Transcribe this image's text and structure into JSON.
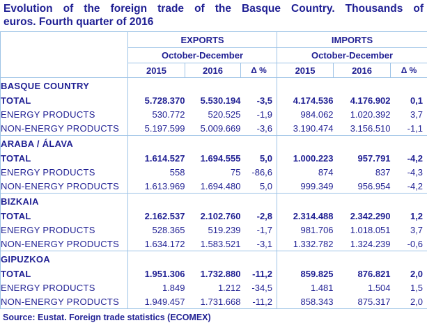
{
  "title": {
    "line1": "Evolution of the foreign trade of the Basque Country. Thousands of",
    "line2": "euros. Fourth quarter of 2016",
    "full": "Evolution of the foreign trade of the Basque Country. Thousands of euros. Fourth quarter of 2016"
  },
  "colors": {
    "text_navy": "#1f1f93",
    "border_blue": "#9dc3e6",
    "background": "#ffffff"
  },
  "table": {
    "groups": [
      {
        "label": "EXPORTS",
        "period": "October-December"
      },
      {
        "label": "IMPORTS",
        "period": "October-December"
      }
    ],
    "columns": [
      "2015",
      "2016",
      "Δ %"
    ],
    "sections": [
      {
        "name": "BASQUE COUNTRY",
        "rows": [
          {
            "label": "TOTAL",
            "bold": true,
            "exports": [
              "5.728.370",
              "5.530.194",
              "-3,5"
            ],
            "imports": [
              "4.174.536",
              "4.176.902",
              "0,1"
            ]
          },
          {
            "label": "ENERGY PRODUCTS",
            "bold": false,
            "exports": [
              "530.772",
              "520.525",
              "-1,9"
            ],
            "imports": [
              "984.062",
              "1.020.392",
              "3,7"
            ]
          },
          {
            "label": "NON-ENERGY PRODUCTS",
            "bold": false,
            "exports": [
              "5.197.599",
              "5.009.669",
              "-3,6"
            ],
            "imports": [
              "3.190.474",
              "3.156.510",
              "-1,1"
            ]
          }
        ]
      },
      {
        "name": "ARABA / ÁLAVA",
        "rows": [
          {
            "label": "TOTAL",
            "bold": true,
            "exports": [
              "1.614.527",
              "1.694.555",
              "5,0"
            ],
            "imports": [
              "1.000.223",
              "957.791",
              "-4,2"
            ]
          },
          {
            "label": "ENERGY PRODUCTS",
            "bold": false,
            "exports": [
              "558",
              "75",
              "-86,6"
            ],
            "imports": [
              "874",
              "837",
              "-4,3"
            ]
          },
          {
            "label": "NON-ENERGY PRODUCTS",
            "bold": false,
            "exports": [
              "1.613.969",
              "1.694.480",
              "5,0"
            ],
            "imports": [
              "999.349",
              "956.954",
              "-4,2"
            ]
          }
        ]
      },
      {
        "name": "BIZKAIA",
        "rows": [
          {
            "label": "TOTAL",
            "bold": true,
            "exports": [
              "2.162.537",
              "2.102.760",
              "-2,8"
            ],
            "imports": [
              "2.314.488",
              "2.342.290",
              "1,2"
            ]
          },
          {
            "label": "ENERGY PRODUCTS",
            "bold": false,
            "exports": [
              "528.365",
              "519.239",
              "-1,7"
            ],
            "imports": [
              "981.706",
              "1.018.051",
              "3,7"
            ]
          },
          {
            "label": "NON-ENERGY PRODUCTS",
            "bold": false,
            "exports": [
              "1.634.172",
              "1.583.521",
              "-3,1"
            ],
            "imports": [
              "1.332.782",
              "1.324.239",
              "-0,6"
            ]
          }
        ]
      },
      {
        "name": "GIPUZKOA",
        "rows": [
          {
            "label": "TOTAL",
            "bold": true,
            "exports": [
              "1.951.306",
              "1.732.880",
              "-11,2"
            ],
            "imports": [
              "859.825",
              "876.821",
              "2,0"
            ]
          },
          {
            "label": "ENERGY PRODUCTS",
            "bold": false,
            "exports": [
              "1.849",
              "1.212",
              "-34,5"
            ],
            "imports": [
              "1.481",
              "1.504",
              "1,5"
            ]
          },
          {
            "label": "NON-ENERGY PRODUCTS",
            "bold": false,
            "exports": [
              "1.949.457",
              "1.731.668",
              "-11,2"
            ],
            "imports": [
              "858.343",
              "875.317",
              "2,0"
            ]
          }
        ]
      }
    ]
  },
  "source": "Source: Eustat. Foreign trade statistics (ECOMEX)",
  "chart_data": {
    "type": "table",
    "title": "Evolution of the foreign trade of the Basque Country. Thousands of euros. Fourth quarter of 2016",
    "units": "Thousands of euros",
    "period": "October-December",
    "column_groups": [
      "EXPORTS",
      "IMPORTS"
    ],
    "columns": [
      "2015",
      "2016",
      "Δ %"
    ],
    "rows": [
      {
        "section": "BASQUE COUNTRY",
        "label": "TOTAL",
        "exports_2015": 5728370,
        "exports_2016": 5530194,
        "exports_delta_pct": -3.5,
        "imports_2015": 4174536,
        "imports_2016": 4176902,
        "imports_delta_pct": 0.1
      },
      {
        "section": "BASQUE COUNTRY",
        "label": "ENERGY PRODUCTS",
        "exports_2015": 530772,
        "exports_2016": 520525,
        "exports_delta_pct": -1.9,
        "imports_2015": 984062,
        "imports_2016": 1020392,
        "imports_delta_pct": 3.7
      },
      {
        "section": "BASQUE COUNTRY",
        "label": "NON-ENERGY PRODUCTS",
        "exports_2015": 5197599,
        "exports_2016": 5009669,
        "exports_delta_pct": -3.6,
        "imports_2015": 3190474,
        "imports_2016": 3156510,
        "imports_delta_pct": -1.1
      },
      {
        "section": "ARABA / ÁLAVA",
        "label": "TOTAL",
        "exports_2015": 1614527,
        "exports_2016": 1694555,
        "exports_delta_pct": 5.0,
        "imports_2015": 1000223,
        "imports_2016": 957791,
        "imports_delta_pct": -4.2
      },
      {
        "section": "ARABA / ÁLAVA",
        "label": "ENERGY PRODUCTS",
        "exports_2015": 558,
        "exports_2016": 75,
        "exports_delta_pct": -86.6,
        "imports_2015": 874,
        "imports_2016": 837,
        "imports_delta_pct": -4.3
      },
      {
        "section": "ARABA / ÁLAVA",
        "label": "NON-ENERGY PRODUCTS",
        "exports_2015": 1613969,
        "exports_2016": 1694480,
        "exports_delta_pct": 5.0,
        "imports_2015": 999349,
        "imports_2016": 956954,
        "imports_delta_pct": -4.2
      },
      {
        "section": "BIZKAIA",
        "label": "TOTAL",
        "exports_2015": 2162537,
        "exports_2016": 2102760,
        "exports_delta_pct": -2.8,
        "imports_2015": 2314488,
        "imports_2016": 2342290,
        "imports_delta_pct": 1.2
      },
      {
        "section": "BIZKAIA",
        "label": "ENERGY PRODUCTS",
        "exports_2015": 528365,
        "exports_2016": 519239,
        "exports_delta_pct": -1.7,
        "imports_2015": 981706,
        "imports_2016": 1018051,
        "imports_delta_pct": 3.7
      },
      {
        "section": "BIZKAIA",
        "label": "NON-ENERGY PRODUCTS",
        "exports_2015": 1634172,
        "exports_2016": 1583521,
        "exports_delta_pct": -3.1,
        "imports_2015": 1332782,
        "imports_2016": 1324239,
        "imports_delta_pct": -0.6
      },
      {
        "section": "GIPUZKOA",
        "label": "TOTAL",
        "exports_2015": 1951306,
        "exports_2016": 1732880,
        "exports_delta_pct": -11.2,
        "imports_2015": 859825,
        "imports_2016": 876821,
        "imports_delta_pct": 2.0
      },
      {
        "section": "GIPUZKOA",
        "label": "ENERGY PRODUCTS",
        "exports_2015": 1849,
        "exports_2016": 1212,
        "exports_delta_pct": -34.5,
        "imports_2015": 1481,
        "imports_2016": 1504,
        "imports_delta_pct": 1.5
      },
      {
        "section": "GIPUZKOA",
        "label": "NON-ENERGY PRODUCTS",
        "exports_2015": 1949457,
        "exports_2016": 1731668,
        "exports_delta_pct": -11.2,
        "imports_2015": 858343,
        "imports_2016": 875317,
        "imports_delta_pct": 2.0
      }
    ],
    "source": "Source: Eustat. Foreign trade statistics (ECOMEX)"
  }
}
